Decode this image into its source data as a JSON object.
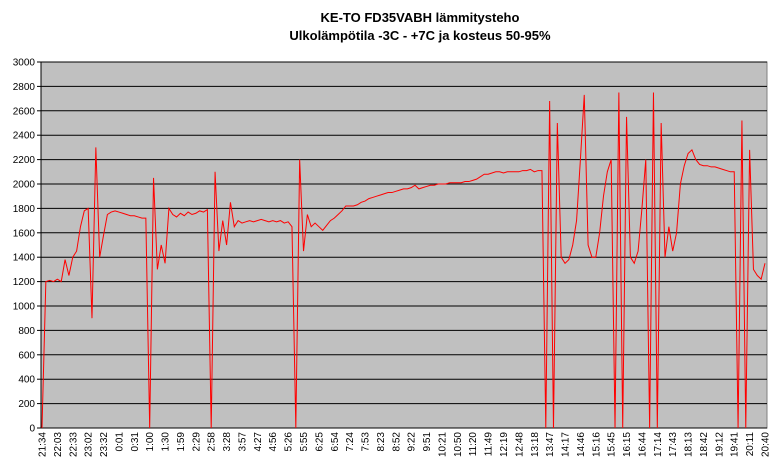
{
  "chart_data": {
    "type": "line",
    "title": "KE-TO FD35VABH lämmitysteho",
    "subtitle": "Ulkolämpötila  -3C - +7C ja kosteus 50-95%",
    "categories": [
      "21:34",
      null,
      null,
      null,
      "22:03",
      null,
      null,
      null,
      "22:33",
      null,
      null,
      null,
      "23:02",
      null,
      null,
      null,
      "23:32",
      null,
      null,
      null,
      "0:01",
      null,
      null,
      null,
      "0:31",
      null,
      null,
      null,
      "1:00",
      null,
      null,
      null,
      "1:30",
      null,
      null,
      null,
      "1:59",
      null,
      null,
      null,
      "2:29",
      null,
      null,
      null,
      "2:58",
      null,
      null,
      null,
      "3:28",
      null,
      null,
      null,
      "3:57",
      null,
      null,
      null,
      "4:27",
      null,
      null,
      null,
      "4:56",
      null,
      null,
      null,
      "5:26",
      null,
      null,
      null,
      "5:55",
      null,
      null,
      null,
      "6:25",
      null,
      null,
      null,
      "6:54",
      null,
      null,
      null,
      "7:24",
      null,
      null,
      null,
      "7:53",
      null,
      null,
      null,
      "8:23",
      null,
      null,
      null,
      "8:52",
      null,
      null,
      null,
      "9:22",
      null,
      null,
      null,
      "9:51",
      null,
      null,
      null,
      "10:21",
      null,
      null,
      null,
      "10:50",
      null,
      null,
      null,
      "11:20",
      null,
      null,
      null,
      "11:49",
      null,
      null,
      null,
      "12:19",
      null,
      null,
      null,
      "12:48",
      null,
      null,
      null,
      "13:18",
      null,
      null,
      null,
      "13:47",
      null,
      null,
      null,
      "14:17",
      null,
      null,
      null,
      "14:46",
      null,
      null,
      null,
      "15:16",
      null,
      null,
      null,
      "15:45",
      null,
      null,
      null,
      "16:15",
      null,
      null,
      null,
      "16:44",
      null,
      null,
      null,
      "17:14",
      null,
      null,
      null,
      "17:43",
      null,
      null,
      null,
      "18:13",
      null,
      null,
      null,
      "18:42",
      null,
      null,
      null,
      "19:12",
      null,
      null,
      null,
      "19:41",
      null,
      null,
      null,
      "20:11",
      null,
      null,
      null,
      "20:40"
    ],
    "series": [
      {
        "color": "#ff0000",
        "values": [
          0,
          1200,
          1210,
          1200,
          1220,
          1200,
          1380,
          1250,
          1400,
          1450,
          1650,
          1780,
          1800,
          900,
          2300,
          1400,
          1580,
          1750,
          1770,
          1780,
          1770,
          1760,
          1750,
          1740,
          1740,
          1730,
          1720,
          1720,
          0,
          2050,
          1300,
          1500,
          1350,
          1800,
          1750,
          1730,
          1760,
          1740,
          1770,
          1750,
          1760,
          1780,
          1770,
          1790,
          0,
          2100,
          1450,
          1700,
          1500,
          1850,
          1650,
          1700,
          1680,
          1690,
          1700,
          1690,
          1700,
          1710,
          1700,
          1690,
          1700,
          1690,
          1700,
          1680,
          1690,
          1650,
          0,
          2200,
          1450,
          1750,
          1650,
          1680,
          1650,
          1620,
          1660,
          1700,
          1720,
          1750,
          1780,
          1820,
          1820,
          1820,
          1830,
          1850,
          1860,
          1880,
          1890,
          1900,
          1910,
          1920,
          1930,
          1930,
          1940,
          1950,
          1960,
          1960,
          1970,
          1990,
          1960,
          1970,
          1980,
          1990,
          1990,
          2000,
          2000,
          2000,
          2010,
          2010,
          2010,
          2010,
          2020,
          2020,
          2030,
          2040,
          2060,
          2080,
          2080,
          2090,
          2100,
          2100,
          2090,
          2100,
          2100,
          2100,
          2100,
          2110,
          2110,
          2120,
          2100,
          2110,
          2110,
          0,
          2680,
          0,
          2500,
          1400,
          1350,
          1380,
          1500,
          1700,
          2200,
          2730,
          1500,
          1400,
          1400,
          1600,
          1900,
          2100,
          2200,
          0,
          2750,
          0,
          2550,
          1400,
          1350,
          1450,
          1800,
          2200,
          0,
          2750,
          0,
          2500,
          1400,
          1650,
          1450,
          1600,
          2000,
          2150,
          2250,
          2280,
          2200,
          2160,
          2150,
          2150,
          2140,
          2140,
          2130,
          2120,
          2110,
          2100,
          2100,
          0,
          2520,
          0,
          2280,
          1300,
          1250,
          1220,
          1350
        ]
      }
    ],
    "ylim": [
      0,
      3000
    ],
    "yticks": [
      0,
      200,
      400,
      600,
      800,
      1000,
      1200,
      1400,
      1600,
      1800,
      2000,
      2200,
      2400,
      2600,
      2800,
      3000
    ],
    "grid": true,
    "plot_background": "#c0c0c0"
  }
}
